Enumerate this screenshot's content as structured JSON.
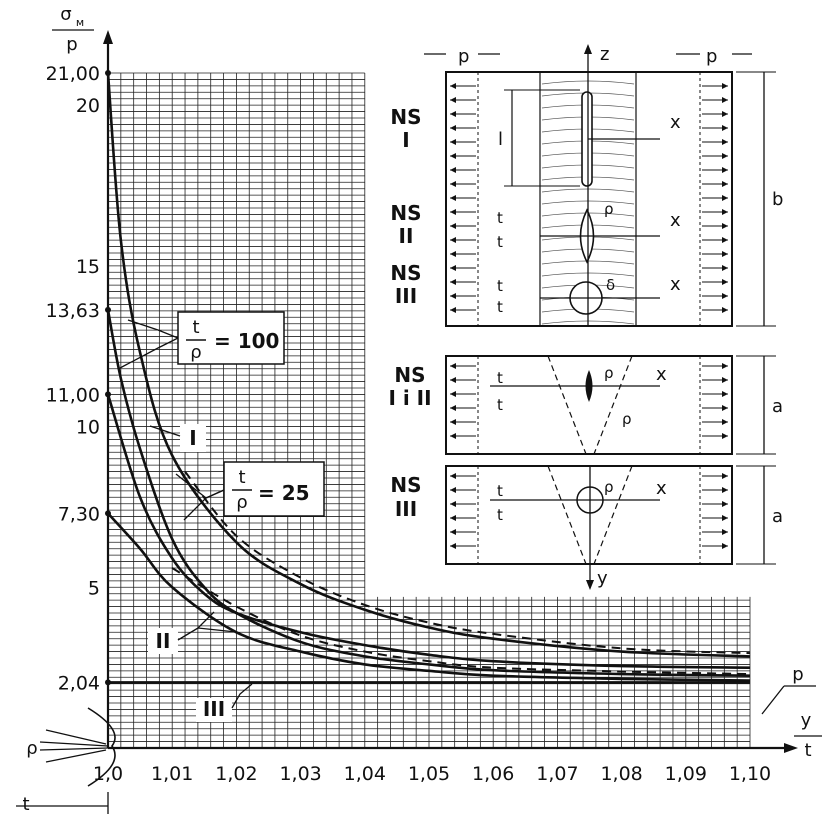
{
  "chart_data": {
    "type": "line",
    "y_axis_label_top": "σ_м",
    "y_axis_label_bottom": "p",
    "x_axis_label_top": "y",
    "x_axis_label_bottom": "t",
    "x_ticks": [
      "1,0",
      "1,01",
      "1,02",
      "1,03",
      "1,04",
      "1,05",
      "1,06",
      "1,07",
      "1,08",
      "1,09",
      "1,10"
    ],
    "y_ticks_major": [
      "20",
      "15",
      "10",
      "5"
    ],
    "y_ticks_special": [
      "21,00",
      "13,63",
      "11,00",
      "7,30",
      "2,04"
    ],
    "xlim": [
      1.0,
      1.1
    ],
    "ylim": [
      0,
      21
    ],
    "grid": true,
    "series": [
      {
        "id": "I-100",
        "style": "solid",
        "x": [
          1.0,
          1.002,
          1.005,
          1.01,
          1.02,
          1.03,
          1.04,
          1.05,
          1.06,
          1.08,
          1.1
        ],
        "y": [
          21.0,
          15.8,
          12.3,
          9.1,
          6.4,
          5.1,
          4.3,
          3.75,
          3.4,
          3.0,
          2.85
        ]
      },
      {
        "id": "I-100-dashed",
        "style": "dashed",
        "x": [
          1.012,
          1.02,
          1.03,
          1.04,
          1.05,
          1.06,
          1.08,
          1.1
        ],
        "y": [
          8.6,
          6.6,
          5.3,
          4.45,
          3.9,
          3.55,
          3.1,
          2.95
        ]
      },
      {
        "id": "I-25",
        "style": "solid",
        "x": [
          1.0,
          1.005,
          1.01,
          1.015,
          1.02,
          1.03,
          1.04,
          1.05,
          1.06,
          1.08,
          1.1
        ],
        "y": [
          11.0,
          7.8,
          5.9,
          4.8,
          4.2,
          3.6,
          3.2,
          2.9,
          2.7,
          2.55,
          2.5
        ]
      },
      {
        "id": "II-100",
        "style": "solid",
        "x": [
          1.0,
          1.002,
          1.005,
          1.01,
          1.015,
          1.02,
          1.03,
          1.04,
          1.05,
          1.06,
          1.08,
          1.1
        ],
        "y": [
          13.63,
          11.5,
          9.3,
          6.5,
          5.0,
          4.2,
          3.3,
          2.85,
          2.6,
          2.42,
          2.3,
          2.25
        ]
      },
      {
        "id": "II-dashed",
        "style": "dashed",
        "x": [
          1.01,
          1.02,
          1.03,
          1.04,
          1.05,
          1.06,
          1.08,
          1.1
        ],
        "y": [
          5.6,
          4.4,
          3.5,
          3.0,
          2.7,
          2.5,
          2.38,
          2.3
        ]
      },
      {
        "id": "II-25",
        "style": "solid",
        "x": [
          1.0,
          1.005,
          1.01,
          1.02,
          1.03,
          1.04,
          1.05,
          1.06,
          1.08,
          1.1
        ],
        "y": [
          7.3,
          6.2,
          5.0,
          3.6,
          3.0,
          2.6,
          2.4,
          2.25,
          2.15,
          2.1
        ]
      },
      {
        "id": "III",
        "style": "solid",
        "x": [
          1.0,
          1.1
        ],
        "y": [
          2.04,
          2.04
        ]
      }
    ],
    "annotations": [
      {
        "text": "t/ρ = 100"
      },
      {
        "text": "t/ρ = 25"
      },
      {
        "text": "I"
      },
      {
        "text": "II"
      },
      {
        "text": "III"
      }
    ]
  },
  "labels": {
    "ratio_num": "t",
    "ratio_den": "ρ",
    "ratio100_value": "= 100",
    "ratio25_value": "= 25",
    "curve_I": "I",
    "curve_II": "II",
    "curve_III": "III",
    "y_top_sym": "σ",
    "y_top_sub": "м",
    "y_bottom": "p",
    "x_top": "y",
    "x_bottom": "t",
    "p_marker": "p",
    "rho_bottom": "ρ",
    "t_bottom": "t"
  },
  "diagram": {
    "ns1_title": "NS",
    "ns1_sub": "I",
    "ns2_title": "NS",
    "ns2_sub": "II",
    "ns3_title": "NS",
    "ns3_sub": "III",
    "ns4_title": "NS",
    "ns4_sub": "I i II",
    "ns5_title": "NS",
    "ns5_sub": "III",
    "p_left": "p",
    "p_right": "p",
    "z": "z",
    "x": "x",
    "y": "y",
    "l": "l",
    "b": "b",
    "a": "a",
    "t": "t",
    "rho": "ρ",
    "rho_alt": "δ"
  }
}
